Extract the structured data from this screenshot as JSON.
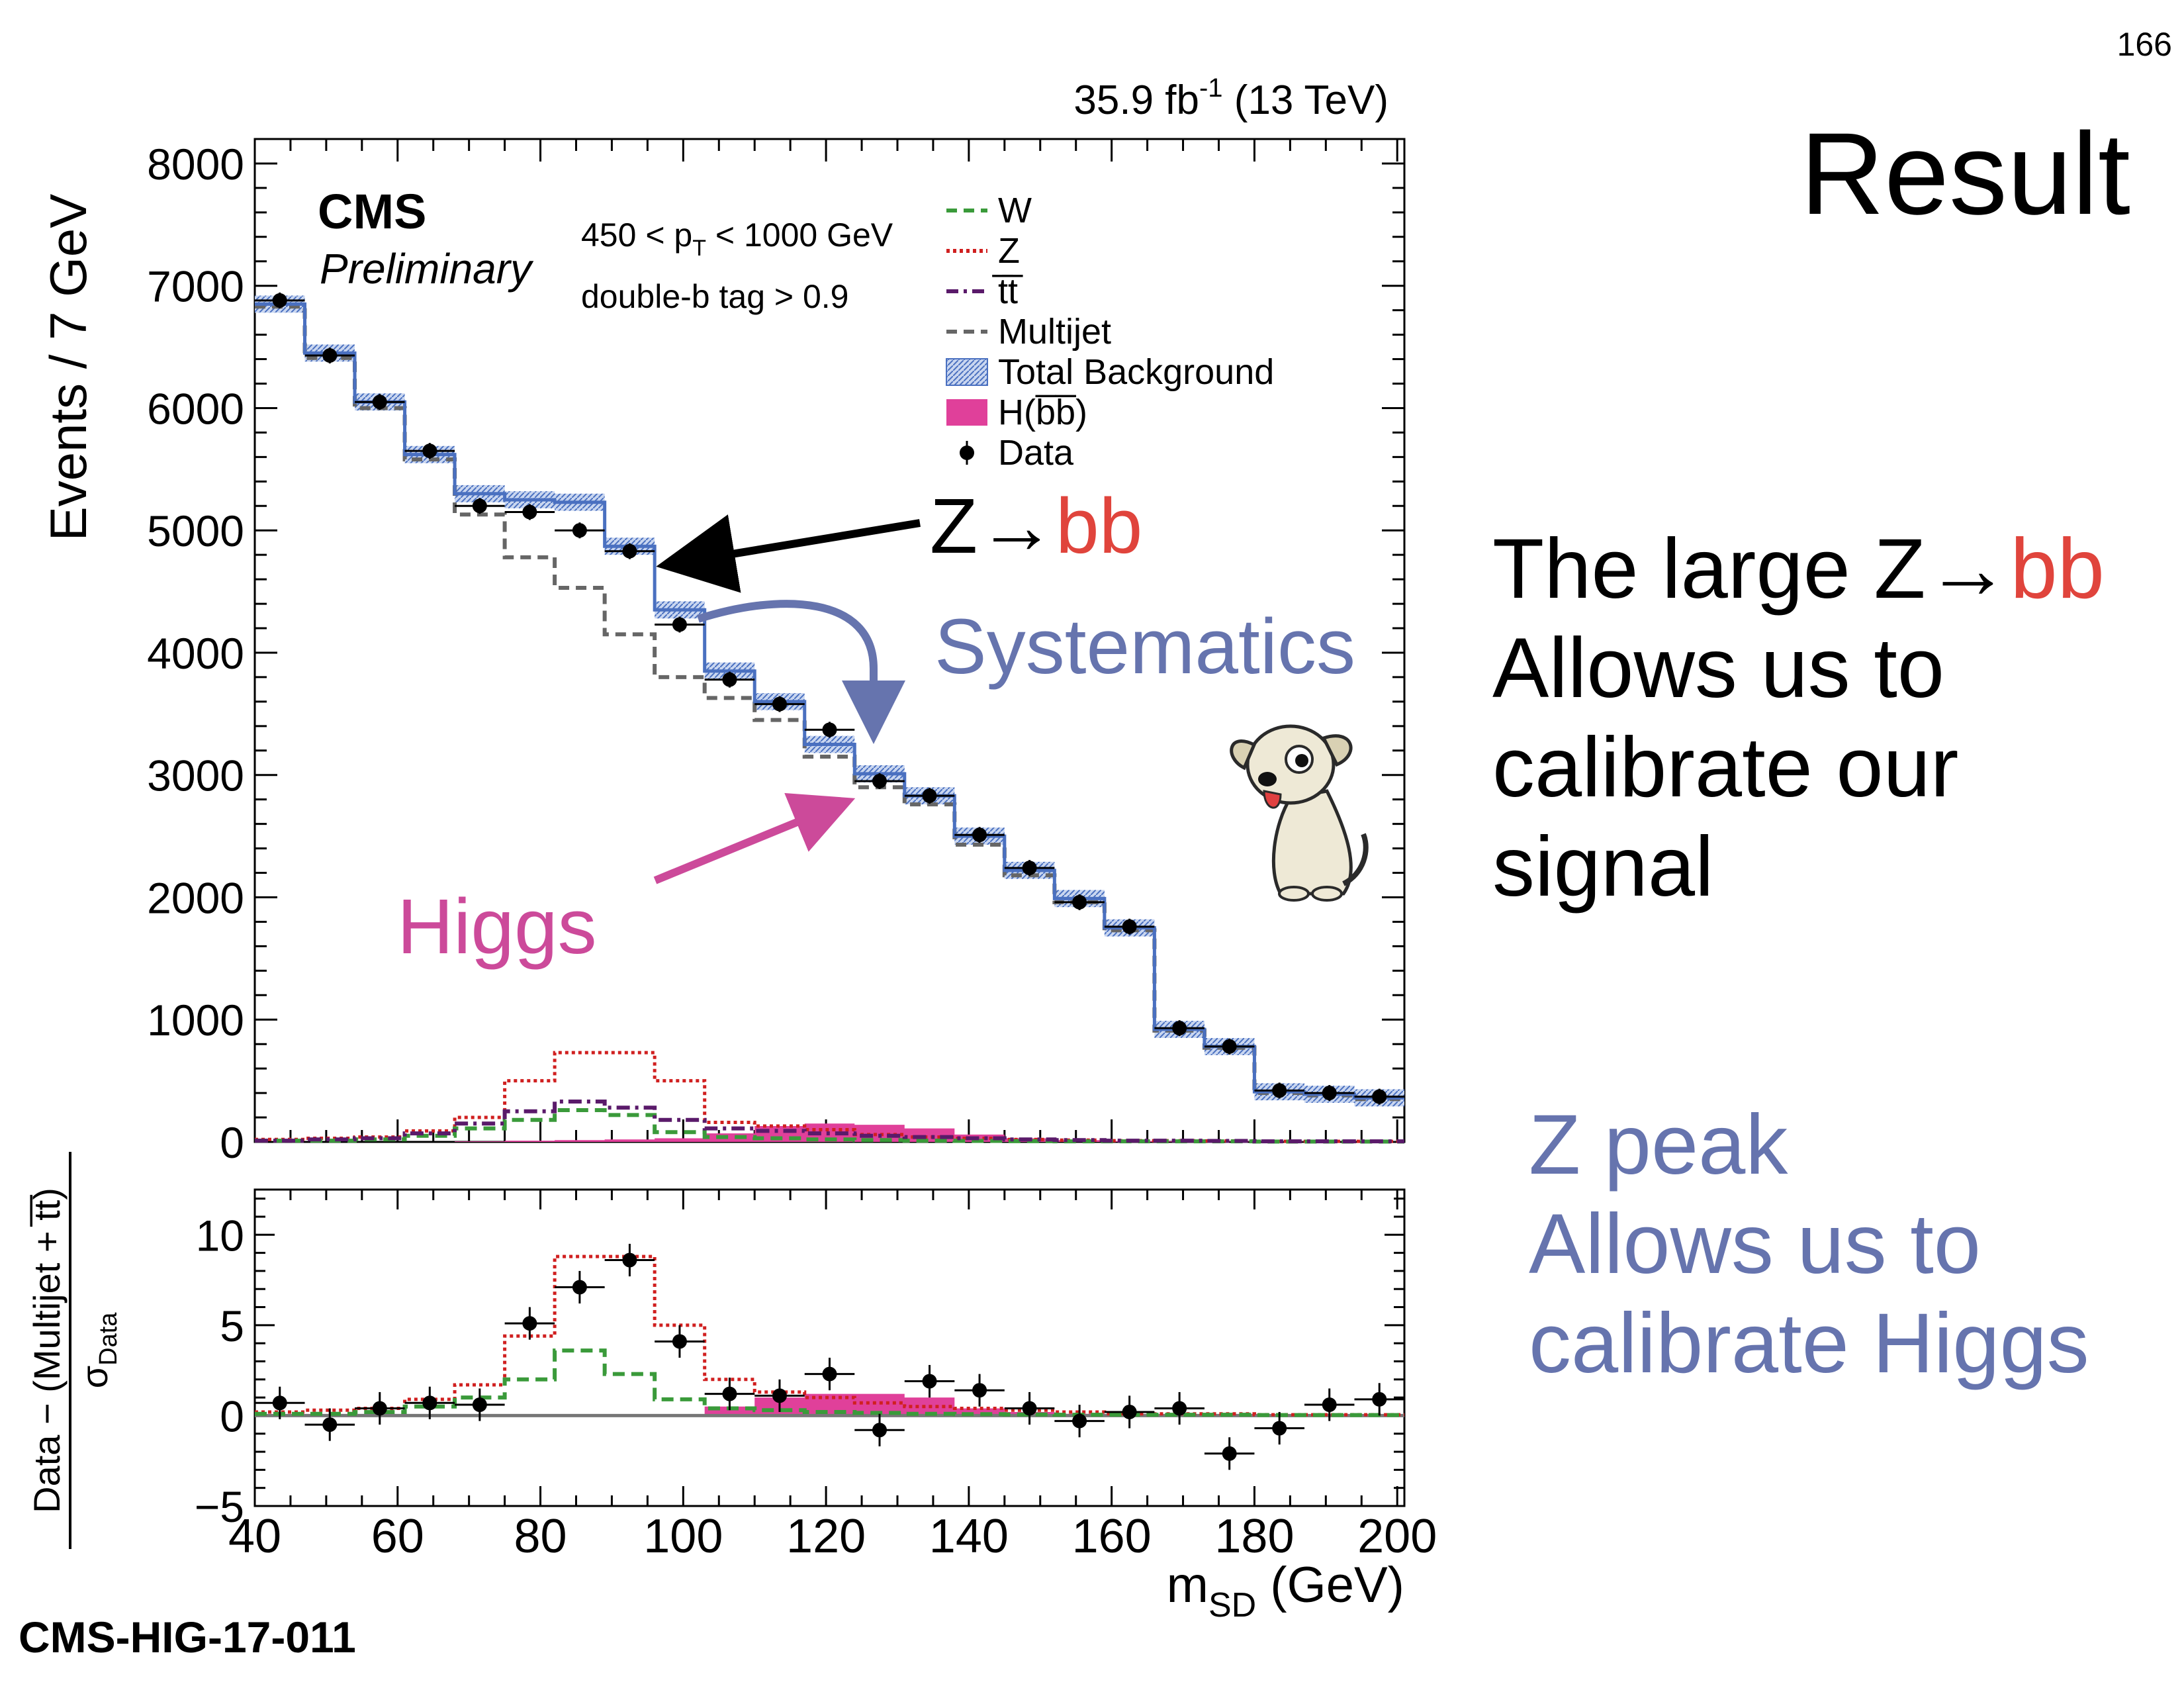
{
  "slide": {
    "page_number": "166",
    "title": "Result",
    "reference": "CMS-HIG-17-011",
    "text_block_1": {
      "line1_prefix": "The large Z→",
      "line1_highlight": "bb",
      "line2": "Allows us to",
      "line3": "calibrate our",
      "line4": "signal"
    },
    "text_block_2": {
      "line1": "Z peak",
      "line2": "Allows us to",
      "line3": "calibrate Higgs"
    },
    "annotations": {
      "zbb_prefix": "Z→",
      "zbb_highlight": "bb",
      "systematics": "Systematics",
      "higgs": "Higgs"
    },
    "colors": {
      "text_red": "#e0443c",
      "text_purple": "#6674ae",
      "higgs_pink": "#cc4a9a"
    }
  },
  "chart_data": [
    {
      "type": "line",
      "luminosity_label": "35.9 fb",
      "luminosity_exponent": "-1",
      "energy_label": "(13 TeV)",
      "experiment": "CMS",
      "status": "Preliminary",
      "cut1_prefix": "450 < p",
      "cut1_sub": "T",
      "cut1_suffix": " < 1000 GeV",
      "cut2": "double-b tag > 0.9",
      "ylabel": "Events / 7 GeV",
      "ylim": [
        0,
        8200
      ],
      "xlim": [
        40,
        201
      ],
      "yticks": [
        "0",
        "1000",
        "2000",
        "3000",
        "4000",
        "5000",
        "6000",
        "7000",
        "8000"
      ],
      "legend": [
        {
          "label": "W",
          "style": "dashed",
          "color": "#3a9a3a"
        },
        {
          "label": "Z",
          "style": "dotted",
          "color": "#d02020"
        },
        {
          "label": "t̅t̅",
          "style": "dashdot",
          "color": "#5a1a6a"
        },
        {
          "label": "Multijet",
          "style": "dashed",
          "color": "#666666"
        },
        {
          "label": "Total Background",
          "style": "hatched",
          "color": "#4a70c0"
        },
        {
          "label": "H(b̅b̅)",
          "style": "filled",
          "color": "#e0409a"
        },
        {
          "label": "Data",
          "style": "marker",
          "color": "#000000"
        }
      ],
      "bin_edges": [
        40,
        47,
        54,
        61,
        68,
        75,
        82,
        89,
        96,
        103,
        110,
        117,
        124,
        131,
        138,
        145,
        152,
        159,
        166,
        173,
        180,
        187,
        194,
        201
      ],
      "bin_centers": [
        43.5,
        50.5,
        57.5,
        64.5,
        71.5,
        78.5,
        85.5,
        92.5,
        99.5,
        106.5,
        113.5,
        120.5,
        127.5,
        134.5,
        141.5,
        148.5,
        155.5,
        162.5,
        169.5,
        176.5,
        183.5,
        190.5,
        197.5
      ],
      "series": [
        {
          "name": "Data",
          "values": [
            6880,
            6430,
            6050,
            5650,
            5200,
            5150,
            5000,
            4830,
            4230,
            3780,
            3580,
            3370,
            2950,
            2830,
            2510,
            2240,
            1960,
            1760,
            930,
            780,
            420,
            400,
            370
          ]
        },
        {
          "name": "Total Background",
          "values": [
            6850,
            6450,
            6050,
            5620,
            5300,
            5250,
            5230,
            4870,
            4350,
            3850,
            3600,
            3250,
            3010,
            2830,
            2500,
            2220,
            1990,
            1750,
            920,
            780,
            410,
            390,
            360
          ]
        },
        {
          "name": "Multijet",
          "values": [
            6830,
            6410,
            6000,
            5580,
            5130,
            4780,
            4530,
            4150,
            3800,
            3630,
            3450,
            3150,
            2900,
            2760,
            2430,
            2180,
            1960,
            1730,
            910,
            770,
            400,
            380,
            350
          ]
        },
        {
          "name": "Z",
          "values": [
            20,
            30,
            40,
            90,
            200,
            500,
            730,
            730,
            500,
            160,
            130,
            100,
            60,
            40,
            30,
            20,
            15,
            10,
            10,
            8,
            5,
            5,
            5
          ]
        },
        {
          "name": "t̅t̅",
          "values": [
            10,
            20,
            30,
            70,
            150,
            250,
            330,
            280,
            180,
            110,
            90,
            70,
            50,
            40,
            30,
            20,
            15,
            10,
            10,
            8,
            5,
            5,
            5
          ]
        },
        {
          "name": "W",
          "values": [
            10,
            10,
            20,
            50,
            110,
            180,
            260,
            220,
            80,
            40,
            30,
            20,
            15,
            10,
            8,
            6,
            5,
            5,
            5,
            5,
            3,
            3,
            3
          ]
        },
        {
          "name": "H(b̅b̅)",
          "values": [
            0,
            0,
            0,
            0,
            5,
            10,
            15,
            20,
            30,
            70,
            130,
            150,
            140,
            110,
            60,
            30,
            15,
            8,
            5,
            3,
            2,
            1,
            1
          ]
        }
      ]
    },
    {
      "type": "line",
      "ylabel_numerator": "Data − (Multijet + t̅t̅)",
      "ylabel_denominator": "σ",
      "ylabel_denominator_sub": "Data",
      "xlabel_main": "m",
      "xlabel_sub": "SD",
      "xlabel_unit": " (GeV)",
      "ylim": [
        -5,
        12.5
      ],
      "xlim": [
        40,
        201
      ],
      "yticks": [
        "−5",
        "0",
        "5",
        "10"
      ],
      "xticks": [
        "40",
        "60",
        "80",
        "100",
        "120",
        "140",
        "160",
        "180",
        "200"
      ],
      "bin_edges": [
        40,
        47,
        54,
        61,
        68,
        75,
        82,
        89,
        96,
        103,
        110,
        117,
        124,
        131,
        138,
        145,
        152,
        159,
        166,
        173,
        180,
        187,
        194,
        201
      ],
      "bin_centers": [
        43.5,
        50.5,
        57.5,
        64.5,
        71.5,
        78.5,
        85.5,
        92.5,
        99.5,
        106.5,
        113.5,
        120.5,
        127.5,
        134.5,
        141.5,
        148.5,
        155.5,
        162.5,
        169.5,
        176.5,
        183.5,
        190.5,
        197.5
      ],
      "series": [
        {
          "name": "Data",
          "values": [
            0.7,
            -0.5,
            0.4,
            0.7,
            0.6,
            5.1,
            7.1,
            8.6,
            4.1,
            1.2,
            1.1,
            2.3,
            -0.8,
            1.9,
            1.4,
            0.4,
            -0.3,
            0.2,
            0.4,
            -2.1,
            -0.7,
            0.6,
            0.9
          ],
          "errors": [
            0.9,
            0.9,
            0.9,
            0.9,
            0.9,
            0.9,
            0.9,
            0.9,
            0.9,
            0.9,
            0.9,
            0.9,
            0.9,
            0.9,
            0.9,
            0.9,
            0.9,
            0.9,
            0.9,
            0.9,
            0.9,
            0.9,
            0.9
          ]
        },
        {
          "name": "Z",
          "values": [
            0.2,
            0.3,
            0.4,
            0.9,
            1.7,
            4.4,
            8.8,
            8.8,
            5.0,
            2.0,
            1.3,
            1.0,
            0.7,
            0.5,
            0.4,
            0.3,
            0.2,
            0.1,
            0.1,
            0.1,
            0.05,
            0.05,
            0.05
          ]
        },
        {
          "name": "W",
          "values": [
            0.1,
            0.1,
            0.2,
            0.5,
            1.0,
            2.0,
            3.6,
            2.3,
            0.9,
            0.4,
            0.3,
            0.2,
            0.15,
            0.1,
            0.08,
            0.06,
            0.05,
            0.05,
            0.05,
            0.05,
            0.03,
            0.03,
            0.03
          ]
        },
        {
          "name": "H(b̅b̅)",
          "values": [
            0,
            0,
            0,
            0,
            0,
            0,
            0,
            0,
            0,
            0.5,
            1.0,
            1.2,
            1.2,
            1.0,
            0.4,
            0.2,
            0.1,
            0.05,
            0.02,
            0.01,
            0,
            0,
            0
          ]
        }
      ]
    }
  ]
}
